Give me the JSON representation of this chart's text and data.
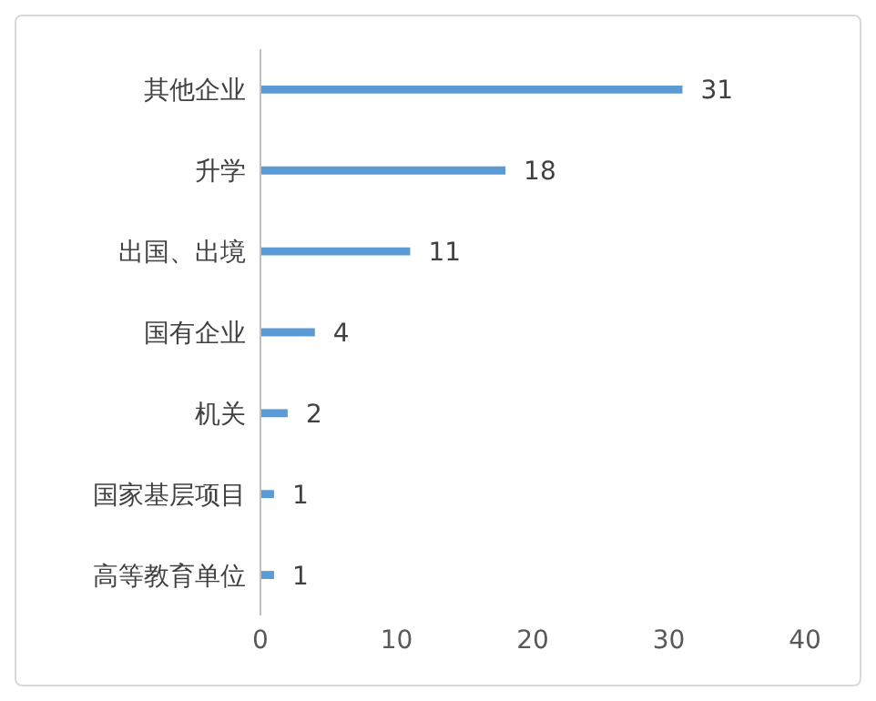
{
  "chart_data": {
    "type": "bar",
    "orientation": "horizontal",
    "categories": [
      "其他企业",
      "升学",
      "出国、出境",
      "国有企业",
      "机关",
      "国家基层项目",
      "高等教育单位"
    ],
    "values": [
      31,
      18,
      11,
      4,
      2,
      1,
      1
    ],
    "color": "#5b9bd5",
    "xlim": [
      0,
      40
    ],
    "xticks": [
      0,
      10,
      20,
      30,
      40
    ],
    "data_labels": true,
    "grid": false,
    "legend": false
  }
}
